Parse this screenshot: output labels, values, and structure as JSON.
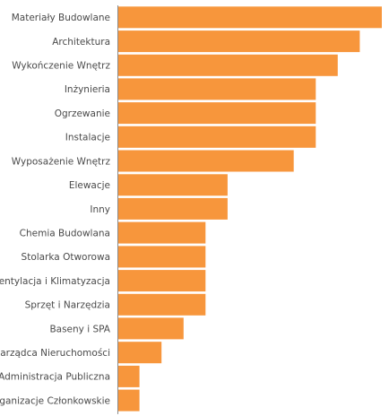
{
  "chart_data": {
    "type": "bar",
    "orientation": "horizontal",
    "categories": [
      "Materiały Budowlane",
      "Architektura",
      "Wykończenie Wnętrz",
      "Inżynieria",
      "Ogrzewanie",
      "Instalacje",
      "Wyposażenie Wnętrz",
      "Elewacje",
      "Inny",
      "Chemia Budowlana",
      "Stolarka Otworowa",
      "Wentylacja i Klimatyzacja",
      "Sprzęt i Narzędzia",
      "Baseny i SPA",
      "Zarządca Nieruchomości",
      "Administracja Publiczna",
      "Organizacje Członkowskie"
    ],
    "values": [
      12,
      11,
      10,
      9,
      9,
      9,
      8,
      5,
      5,
      4,
      4,
      4,
      4,
      3,
      2,
      1,
      1
    ],
    "xlim": [
      0,
      12
    ],
    "title": "",
    "xlabel": "",
    "ylabel": "",
    "grid": false,
    "legend": "none",
    "color": "#f7963c",
    "axis_color": "#8a8a8a",
    "label_color": "#4a4a4a"
  }
}
